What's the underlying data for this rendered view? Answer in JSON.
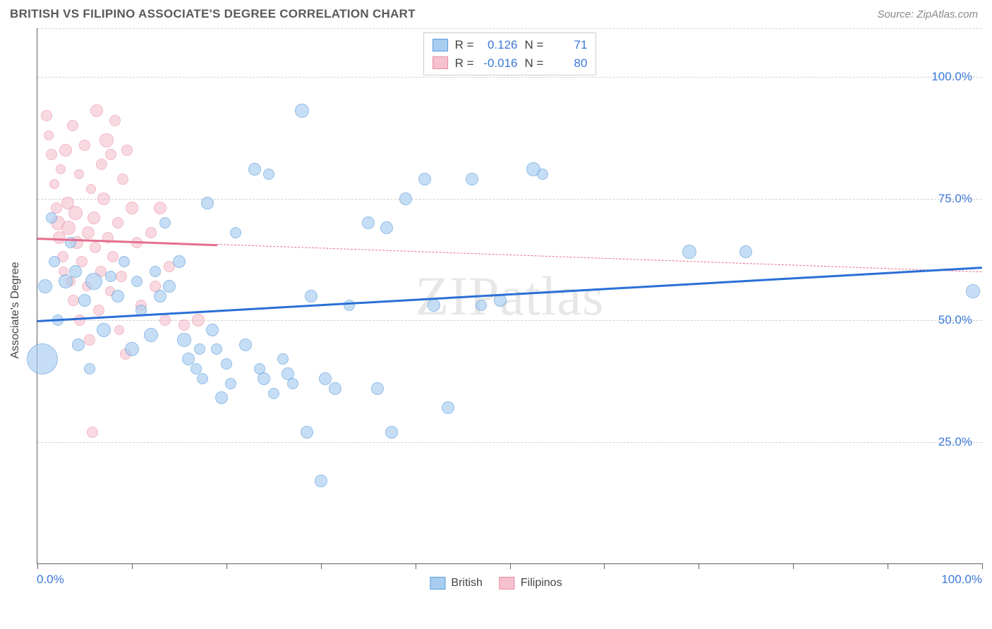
{
  "header": {
    "title": "BRITISH VS FILIPINO ASSOCIATE'S DEGREE CORRELATION CHART",
    "source": "Source: ZipAtlas.com"
  },
  "watermark": "ZIPatlas",
  "chart": {
    "type": "scatter",
    "ylabel": "Associate's Degree",
    "xlim": [
      0,
      100
    ],
    "ylim": [
      0,
      110
    ],
    "y_gridlines": [
      25,
      50,
      75,
      100,
      110
    ],
    "y_tick_labels": {
      "25": "25.0%",
      "50": "50.0%",
      "75": "75.0%",
      "100": "100.0%"
    },
    "x_ticks": [
      0,
      10,
      20,
      30,
      40,
      50,
      60,
      70,
      80,
      90,
      100
    ],
    "x_axis_labels": {
      "0": "0.0%",
      "100": "100.0%"
    },
    "background_color": "#ffffff",
    "grid_color": "#d0d0d0",
    "axis_color": "#606060",
    "tick_label_color": "#3b78d8",
    "series": {
      "british": {
        "label": "British",
        "fill": "#a9cdf1",
        "stroke": "#5a9bdc",
        "trend_color": "#2a6fd6",
        "fill_opacity": 0.65,
        "R": "0.126",
        "N": "71",
        "trend": {
          "y_at_x0": 50,
          "y_at_x100": 61,
          "solid_until_x": 100
        },
        "points": [
          {
            "x": 0.5,
            "y": 42,
            "r": 22
          },
          {
            "x": 0.8,
            "y": 57,
            "r": 10
          },
          {
            "x": 1.5,
            "y": 71,
            "r": 8
          },
          {
            "x": 1.8,
            "y": 62,
            "r": 8
          },
          {
            "x": 2.2,
            "y": 50,
            "r": 8
          },
          {
            "x": 3,
            "y": 58,
            "r": 10
          },
          {
            "x": 3.5,
            "y": 66,
            "r": 8
          },
          {
            "x": 4,
            "y": 60,
            "r": 9
          },
          {
            "x": 4.3,
            "y": 45,
            "r": 9
          },
          {
            "x": 5,
            "y": 54,
            "r": 9
          },
          {
            "x": 5.5,
            "y": 40,
            "r": 8
          },
          {
            "x": 6,
            "y": 58,
            "r": 12
          },
          {
            "x": 7,
            "y": 48,
            "r": 10
          },
          {
            "x": 7.8,
            "y": 59,
            "r": 8
          },
          {
            "x": 8.5,
            "y": 55,
            "r": 9
          },
          {
            "x": 9.2,
            "y": 62,
            "r": 8
          },
          {
            "x": 10,
            "y": 44,
            "r": 10
          },
          {
            "x": 10.5,
            "y": 58,
            "r": 8
          },
          {
            "x": 11,
            "y": 52,
            "r": 8
          },
          {
            "x": 12,
            "y": 47,
            "r": 10
          },
          {
            "x": 12.5,
            "y": 60,
            "r": 8
          },
          {
            "x": 13,
            "y": 55,
            "r": 9
          },
          {
            "x": 13.5,
            "y": 70,
            "r": 8
          },
          {
            "x": 14,
            "y": 57,
            "r": 9
          },
          {
            "x": 15,
            "y": 62,
            "r": 9
          },
          {
            "x": 15.5,
            "y": 46,
            "r": 10
          },
          {
            "x": 16,
            "y": 42,
            "r": 9
          },
          {
            "x": 16.8,
            "y": 40,
            "r": 8
          },
          {
            "x": 17.2,
            "y": 44,
            "r": 8
          },
          {
            "x": 17.5,
            "y": 38,
            "r": 8
          },
          {
            "x": 18,
            "y": 74,
            "r": 9
          },
          {
            "x": 18.5,
            "y": 48,
            "r": 9
          },
          {
            "x": 19,
            "y": 44,
            "r": 8
          },
          {
            "x": 19.5,
            "y": 34,
            "r": 9
          },
          {
            "x": 20,
            "y": 41,
            "r": 8
          },
          {
            "x": 20.5,
            "y": 37,
            "r": 8
          },
          {
            "x": 21,
            "y": 68,
            "r": 8
          },
          {
            "x": 22,
            "y": 45,
            "r": 9
          },
          {
            "x": 23,
            "y": 81,
            "r": 9
          },
          {
            "x": 23.5,
            "y": 40,
            "r": 8
          },
          {
            "x": 24,
            "y": 38,
            "r": 9
          },
          {
            "x": 24.5,
            "y": 80,
            "r": 8
          },
          {
            "x": 25,
            "y": 35,
            "r": 8
          },
          {
            "x": 26,
            "y": 42,
            "r": 8
          },
          {
            "x": 26.5,
            "y": 39,
            "r": 9
          },
          {
            "x": 27,
            "y": 37,
            "r": 8
          },
          {
            "x": 28,
            "y": 93,
            "r": 10
          },
          {
            "x": 28.5,
            "y": 27,
            "r": 9
          },
          {
            "x": 29,
            "y": 55,
            "r": 9
          },
          {
            "x": 30,
            "y": 17,
            "r": 9
          },
          {
            "x": 30.5,
            "y": 38,
            "r": 9
          },
          {
            "x": 31.5,
            "y": 36,
            "r": 9
          },
          {
            "x": 33,
            "y": 53,
            "r": 8
          },
          {
            "x": 35,
            "y": 70,
            "r": 9
          },
          {
            "x": 36,
            "y": 36,
            "r": 9
          },
          {
            "x": 37,
            "y": 69,
            "r": 9
          },
          {
            "x": 37.5,
            "y": 27,
            "r": 9
          },
          {
            "x": 39,
            "y": 75,
            "r": 9
          },
          {
            "x": 41,
            "y": 79,
            "r": 9
          },
          {
            "x": 42,
            "y": 53,
            "r": 9
          },
          {
            "x": 43.5,
            "y": 32,
            "r": 9
          },
          {
            "x": 46,
            "y": 79,
            "r": 9
          },
          {
            "x": 47,
            "y": 53,
            "r": 8
          },
          {
            "x": 49,
            "y": 54,
            "r": 9
          },
          {
            "x": 52.5,
            "y": 81,
            "r": 10
          },
          {
            "x": 53.5,
            "y": 80,
            "r": 8
          },
          {
            "x": 69,
            "y": 64,
            "r": 10
          },
          {
            "x": 75,
            "y": 64,
            "r": 9
          },
          {
            "x": 99,
            "y": 56,
            "r": 10
          }
        ]
      },
      "filipinos": {
        "label": "Filipinos",
        "fill": "#f6c1ce",
        "stroke": "#e98aa3",
        "trend_color": "#e46f8f",
        "fill_opacity": 0.6,
        "R": "-0.016",
        "N": "80",
        "trend": {
          "y_at_x0": 67,
          "y_at_x100": 60,
          "solid_until_x": 19
        },
        "points": [
          {
            "x": 1,
            "y": 92,
            "r": 8
          },
          {
            "x": 1.2,
            "y": 88,
            "r": 7
          },
          {
            "x": 1.5,
            "y": 84,
            "r": 8
          },
          {
            "x": 1.8,
            "y": 78,
            "r": 7
          },
          {
            "x": 2,
            "y": 73,
            "r": 8
          },
          {
            "x": 2.2,
            "y": 70,
            "r": 10
          },
          {
            "x": 2.3,
            "y": 67,
            "r": 9
          },
          {
            "x": 2.5,
            "y": 81,
            "r": 7
          },
          {
            "x": 2.7,
            "y": 63,
            "r": 8
          },
          {
            "x": 2.8,
            "y": 60,
            "r": 7
          },
          {
            "x": 3,
            "y": 85,
            "r": 9
          },
          {
            "x": 3.2,
            "y": 74,
            "r": 9
          },
          {
            "x": 3.3,
            "y": 69,
            "r": 10
          },
          {
            "x": 3.5,
            "y": 58,
            "r": 7
          },
          {
            "x": 3.7,
            "y": 90,
            "r": 8
          },
          {
            "x": 3.8,
            "y": 54,
            "r": 8
          },
          {
            "x": 4,
            "y": 72,
            "r": 10
          },
          {
            "x": 4.2,
            "y": 66,
            "r": 9
          },
          {
            "x": 4.4,
            "y": 80,
            "r": 7
          },
          {
            "x": 4.5,
            "y": 50,
            "r": 8
          },
          {
            "x": 4.7,
            "y": 62,
            "r": 8
          },
          {
            "x": 5,
            "y": 86,
            "r": 8
          },
          {
            "x": 5.2,
            "y": 57,
            "r": 7
          },
          {
            "x": 5.4,
            "y": 68,
            "r": 9
          },
          {
            "x": 5.5,
            "y": 46,
            "r": 8
          },
          {
            "x": 5.7,
            "y": 77,
            "r": 7
          },
          {
            "x": 5.8,
            "y": 27,
            "r": 8
          },
          {
            "x": 6,
            "y": 71,
            "r": 9
          },
          {
            "x": 6.1,
            "y": 65,
            "r": 8
          },
          {
            "x": 6.3,
            "y": 93,
            "r": 9
          },
          {
            "x": 6.5,
            "y": 52,
            "r": 8
          },
          {
            "x": 6.7,
            "y": 60,
            "r": 8
          },
          {
            "x": 6.8,
            "y": 82,
            "r": 8
          },
          {
            "x": 7,
            "y": 75,
            "r": 9
          },
          {
            "x": 7.3,
            "y": 87,
            "r": 10
          },
          {
            "x": 7.5,
            "y": 67,
            "r": 8
          },
          {
            "x": 7.7,
            "y": 56,
            "r": 7
          },
          {
            "x": 7.8,
            "y": 84,
            "r": 8
          },
          {
            "x": 8,
            "y": 63,
            "r": 8
          },
          {
            "x": 8.2,
            "y": 91,
            "r": 8
          },
          {
            "x": 8.5,
            "y": 70,
            "r": 8
          },
          {
            "x": 8.7,
            "y": 48,
            "r": 7
          },
          {
            "x": 8.9,
            "y": 59,
            "r": 8
          },
          {
            "x": 9,
            "y": 79,
            "r": 8
          },
          {
            "x": 9.3,
            "y": 43,
            "r": 8
          },
          {
            "x": 9.5,
            "y": 85,
            "r": 8
          },
          {
            "x": 10,
            "y": 73,
            "r": 9
          },
          {
            "x": 10.5,
            "y": 66,
            "r": 8
          },
          {
            "x": 11,
            "y": 53,
            "r": 8
          },
          {
            "x": 12,
            "y": 68,
            "r": 8
          },
          {
            "x": 12.5,
            "y": 57,
            "r": 8
          },
          {
            "x": 13,
            "y": 73,
            "r": 9
          },
          {
            "x": 13.5,
            "y": 50,
            "r": 8
          },
          {
            "x": 14,
            "y": 61,
            "r": 8
          },
          {
            "x": 15.5,
            "y": 49,
            "r": 8
          },
          {
            "x": 17,
            "y": 50,
            "r": 9
          }
        ]
      }
    }
  },
  "legend_top": {
    "r_label": "R =",
    "n_label": "N ="
  },
  "legend_bottom": {
    "british": "British",
    "filipinos": "Filipinos"
  }
}
